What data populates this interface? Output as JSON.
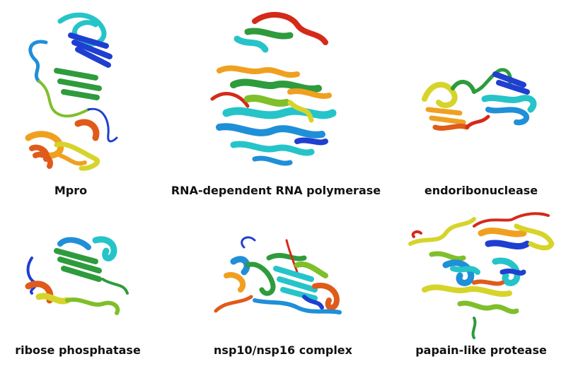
{
  "figure": {
    "panels": [
      {
        "id": "mpro",
        "caption": "Mpro"
      },
      {
        "id": "rdrp",
        "caption": "RNA-dependent RNA polymerase"
      },
      {
        "id": "endo",
        "caption": "endoribonuclease"
      },
      {
        "id": "ribose",
        "caption": "ribose phosphatase"
      },
      {
        "id": "nsp",
        "caption": "nsp10/nsp16 complex"
      },
      {
        "id": "papain",
        "caption": "papain-like protease"
      }
    ],
    "palette": [
      "#1f3fd0",
      "#1f8fd8",
      "#25c4c9",
      "#2e9b3c",
      "#7fbf2a",
      "#d6d42a",
      "#f0a020",
      "#e05a1a",
      "#d42a1a"
    ]
  }
}
